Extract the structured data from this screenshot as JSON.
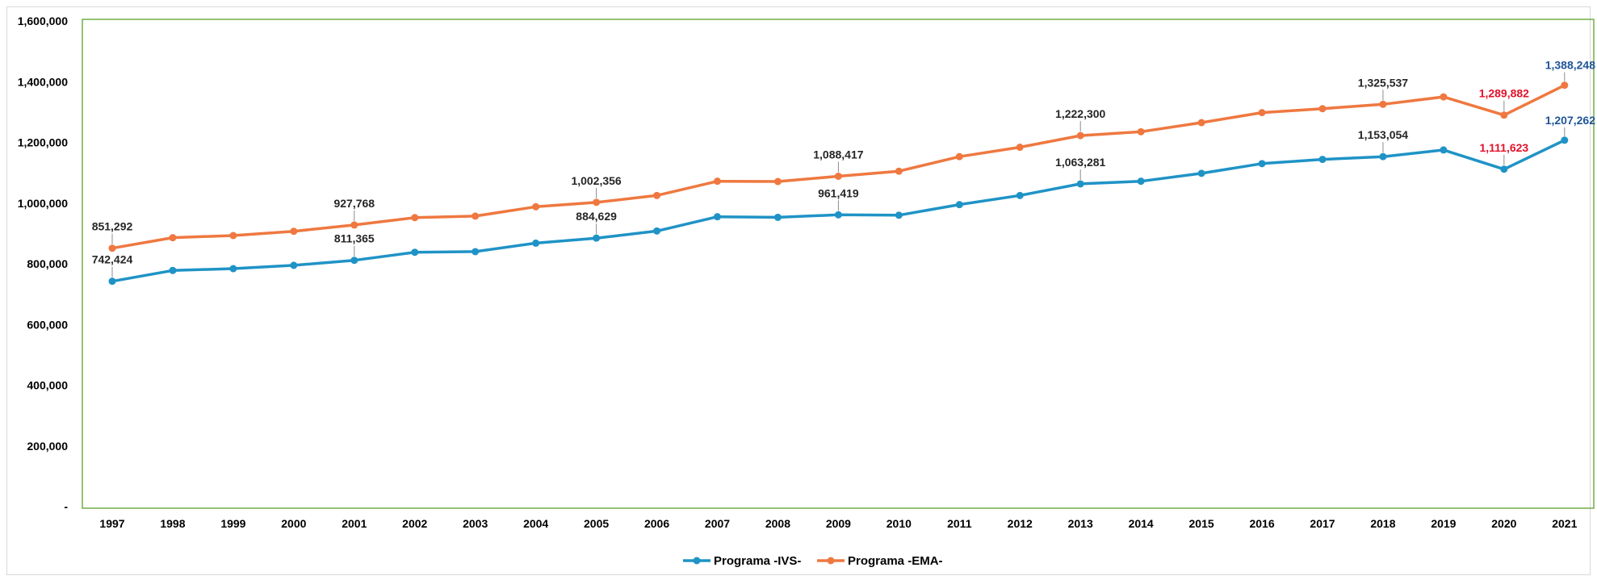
{
  "chart_data": {
    "type": "line",
    "title": "",
    "xlabel": "",
    "ylabel": "",
    "x": [
      "1997",
      "1998",
      "1999",
      "2000",
      "2001",
      "2002",
      "2003",
      "2004",
      "2005",
      "2006",
      "2007",
      "2008",
      "2009",
      "2010",
      "2011",
      "2012",
      "2013",
      "2014",
      "2015",
      "2016",
      "2017",
      "2018",
      "2019",
      "2020",
      "2021"
    ],
    "ylim": [
      0,
      1600000
    ],
    "yticks": [
      0,
      200000,
      400000,
      600000,
      800000,
      1000000,
      1200000,
      1400000,
      1600000
    ],
    "ytick_labels": [
      "-",
      "200,000",
      "400,000",
      "600,000",
      "800,000",
      "1,000,000",
      "1,200,000",
      "1,400,000",
      "1,600,000"
    ],
    "grid": false,
    "legend_position": "bottom-center",
    "series": [
      {
        "name": "Programa -IVS-",
        "color": "#1f93c6",
        "values": [
          742424,
          778000,
          784000,
          795000,
          811365,
          838000,
          840000,
          868000,
          884629,
          908000,
          955000,
          953000,
          961419,
          960000,
          995000,
          1025000,
          1063281,
          1072000,
          1098000,
          1130000,
          1144000,
          1153054,
          1175000,
          1111623,
          1207262
        ],
        "labels": [
          {
            "index": 0,
            "text": "742,424",
            "color": "#262626",
            "size": "normal",
            "pos": "above"
          },
          {
            "index": 4,
            "text": "811,365",
            "color": "#262626",
            "size": "normal",
            "pos": "above"
          },
          {
            "index": 8,
            "text": "884,629",
            "color": "#262626",
            "size": "normal",
            "pos": "above"
          },
          {
            "index": 12,
            "text": "961,419",
            "color": "#262626",
            "size": "normal",
            "pos": "above"
          },
          {
            "index": 16,
            "text": "1,063,281",
            "color": "#262626",
            "size": "normal",
            "pos": "above"
          },
          {
            "index": 21,
            "text": "1,153,054",
            "color": "#262626",
            "size": "normal",
            "pos": "above"
          },
          {
            "index": 23,
            "text": "1,111,623",
            "color": "#e3122a",
            "size": "normal",
            "pos": "above"
          },
          {
            "index": 24,
            "text": "1,207,262",
            "color": "#1f5597",
            "size": "large",
            "pos": "above"
          }
        ]
      },
      {
        "name": "Programa -EMA-",
        "color": "#ef7840",
        "values": [
          851292,
          886000,
          893000,
          907000,
          927768,
          952000,
          957000,
          988000,
          1002356,
          1025000,
          1072000,
          1071000,
          1088417,
          1105000,
          1153000,
          1184000,
          1222300,
          1235000,
          1265000,
          1298000,
          1311000,
          1325537,
          1350000,
          1289882,
          1388248
        ],
        "labels": [
          {
            "index": 0,
            "text": "851,292",
            "color": "#262626",
            "size": "normal",
            "pos": "above"
          },
          {
            "index": 4,
            "text": "927,768",
            "color": "#262626",
            "size": "normal",
            "pos": "above"
          },
          {
            "index": 8,
            "text": "1,002,356",
            "color": "#262626",
            "size": "normal",
            "pos": "above"
          },
          {
            "index": 12,
            "text": "1,088,417",
            "color": "#262626",
            "size": "normal",
            "pos": "above"
          },
          {
            "index": 16,
            "text": "1,222,300",
            "color": "#262626",
            "size": "normal",
            "pos": "above"
          },
          {
            "index": 21,
            "text": "1,325,537",
            "color": "#262626",
            "size": "normal",
            "pos": "above"
          },
          {
            "index": 23,
            "text": "1,289,882",
            "color": "#e3122a",
            "size": "normal",
            "pos": "above"
          },
          {
            "index": 24,
            "text": "1,388,248",
            "color": "#1f5597",
            "size": "large",
            "pos": "above"
          }
        ]
      }
    ],
    "plot_border_color": "#70ad47"
  }
}
